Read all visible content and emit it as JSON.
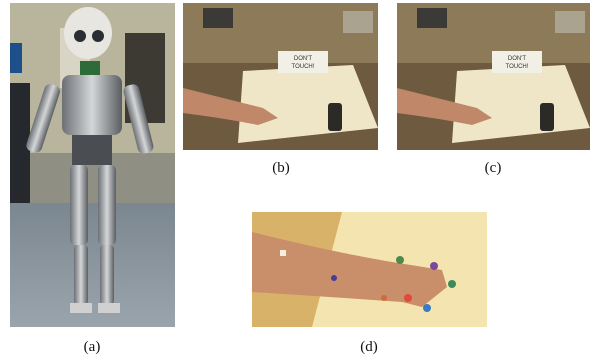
{
  "figure": {
    "panels": [
      {
        "label": "(a)"
      },
      {
        "label": "(b)",
        "sign": [
          "DON'T",
          "TOUCH!"
        ]
      },
      {
        "label": "(c)",
        "sign": [
          "DON'T",
          "TOUCH!"
        ]
      },
      {
        "label": "(d)"
      }
    ]
  }
}
